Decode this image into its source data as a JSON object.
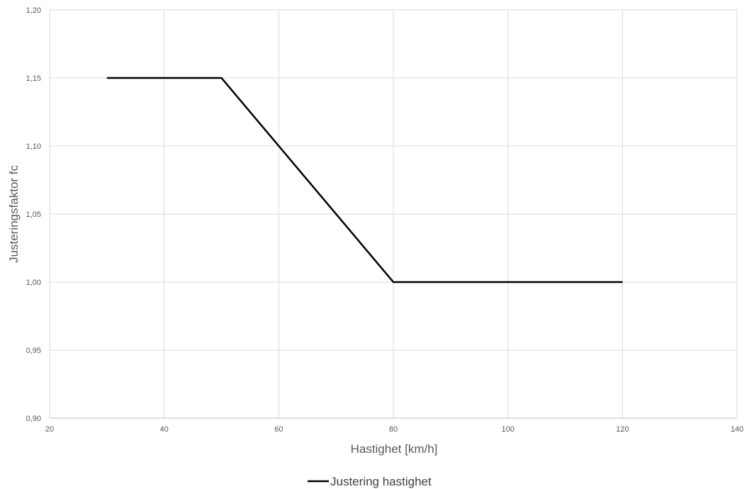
{
  "chart_data": {
    "type": "line",
    "title": "",
    "xlabel": "Hastighet [km/h]",
    "ylabel": "Justeringsfaktor fc",
    "xlim": [
      20,
      140
    ],
    "ylim": [
      0.9,
      1.2
    ],
    "x_ticks": [
      20,
      40,
      60,
      80,
      100,
      120,
      140
    ],
    "y_ticks": [
      0.9,
      0.95,
      1.0,
      1.05,
      1.1,
      1.15,
      1.2
    ],
    "x_tick_labels": [
      "20",
      "40",
      "60",
      "80",
      "100",
      "120",
      "140"
    ],
    "y_tick_labels": [
      "0,90",
      "0,95",
      "1,00",
      "1,05",
      "1,10",
      "1,15",
      "1,20"
    ],
    "grid": true,
    "legend_position": "bottom-center",
    "series": [
      {
        "name": "Justering hastighet",
        "color": "#000000",
        "x": [
          30,
          50,
          80,
          120
        ],
        "y": [
          1.15,
          1.15,
          1.0,
          1.0
        ]
      }
    ]
  }
}
